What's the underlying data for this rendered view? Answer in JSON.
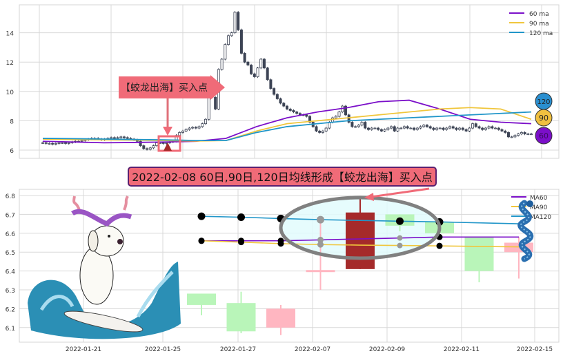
{
  "chart_data": [
    {
      "type": "candlestick",
      "yticks": [
        6,
        8,
        10,
        12,
        14
      ],
      "ylim": [
        5.5,
        15.6
      ],
      "grid": true,
      "legend_position": "top-right",
      "closes": [
        6.5,
        6.45,
        6.45,
        6.4,
        6.45,
        6.5,
        6.5,
        6.45,
        6.5,
        6.55,
        6.6,
        6.6,
        6.65,
        6.7,
        6.75,
        6.8,
        6.8,
        6.75,
        6.7,
        6.75,
        6.8,
        6.85,
        6.8,
        6.85,
        6.9,
        6.85,
        6.8,
        6.75,
        6.7,
        6.6,
        6.3,
        6.1,
        6.05,
        6.15,
        6.3,
        6.5,
        6.5,
        6.45,
        6.5,
        6.55,
        6.6,
        7.0,
        7.2,
        7.3,
        7.4,
        7.5,
        7.55,
        7.5,
        7.6,
        7.8,
        8.1,
        10.0,
        9.6,
        8.8,
        11.5,
        12.2,
        13.2,
        13.8,
        14.0,
        15.4,
        14.2,
        12.6,
        12.0,
        11.8,
        11.2,
        11.0,
        11.6,
        12.2,
        11.6,
        10.8,
        10.2,
        9.8,
        9.5,
        9.2,
        9.0,
        8.8,
        8.7,
        8.6,
        8.5,
        8.4,
        8.4,
        8.3,
        7.9,
        7.6,
        7.3,
        7.2,
        7.3,
        7.5,
        7.9,
        8.2,
        8.3,
        8.6,
        9.0,
        8.4,
        7.9,
        7.6,
        7.6,
        7.7,
        7.9,
        7.5,
        7.4,
        7.5,
        7.5,
        7.4,
        7.3,
        7.4,
        7.5,
        7.6,
        7.3,
        7.5,
        7.5,
        7.6,
        7.5,
        7.5,
        7.4,
        7.5,
        7.6,
        7.7,
        7.6,
        7.5,
        7.4,
        7.5,
        7.5,
        7.4,
        7.5,
        7.6,
        7.5,
        7.4,
        7.5,
        7.4,
        7.3,
        7.5,
        7.8,
        7.6,
        7.5,
        7.4,
        7.5,
        7.6,
        7.5,
        7.5,
        7.4,
        7.3,
        7.2,
        6.9,
        6.9,
        7.0,
        7.1,
        7.2,
        7.1,
        7.1,
        7.1
      ],
      "series": [
        {
          "name": "60 ma",
          "color": "#7b0fc9",
          "values": [
            6.6,
            6.55,
            6.5,
            6.52,
            6.55,
            6.6,
            6.8,
            7.6,
            8.2,
            8.6,
            8.9,
            9.3,
            9.4,
            8.8,
            8.1,
            7.9,
            7.8
          ]
        },
        {
          "name": "90 ma",
          "color": "#f0c63c",
          "values": [
            6.75,
            6.72,
            6.7,
            6.68,
            6.65,
            6.62,
            6.65,
            7.3,
            7.8,
            8.0,
            8.2,
            8.4,
            8.6,
            8.8,
            8.9,
            8.8,
            8.1
          ]
        },
        {
          "name": "120 ma",
          "color": "#2196c9",
          "values": [
            6.8,
            6.78,
            6.75,
            6.72,
            6.7,
            6.65,
            6.65,
            7.2,
            7.6,
            7.8,
            8.0,
            8.1,
            8.2,
            8.3,
            8.4,
            8.5,
            8.6
          ]
        }
      ],
      "annotation": "【蛟龙出海】买入点",
      "end_badges": [
        {
          "label": "120",
          "color": "#2a8fd0"
        },
        {
          "label": "90",
          "color": "#f0c040"
        },
        {
          "label": "60",
          "color": "#7b0fc9"
        }
      ]
    },
    {
      "type": "candlestick",
      "title": "2022-02-08 60日,90日,120日均线形成【蛟龙出海】买入点",
      "yticks": [
        6.1,
        6.2,
        6.3,
        6.4,
        6.5,
        6.6,
        6.7,
        6.8
      ],
      "ylim": [
        6.03,
        6.85
      ],
      "grid": true,
      "legend_position": "top-right",
      "xtick_labels": [
        "2022-01-21",
        "2022-01-25",
        "2022-01-27",
        "2022-02-07",
        "2022-02-09",
        "2022-02-11",
        "2022-02-15"
      ],
      "candles": [
        {
          "open": 6.22,
          "close": 6.28,
          "high": 6.28,
          "low": 6.165,
          "color": "#b9f5b9"
        },
        {
          "open": 6.23,
          "close": 6.08,
          "high": 6.29,
          "low": 6.07,
          "color": "#b9f5b9"
        },
        {
          "open": 6.1,
          "close": 6.2,
          "high": 6.22,
          "low": 6.06,
          "color": "#ffb6c1"
        },
        {
          "open": 6.4,
          "close": 6.405,
          "high": 6.67,
          "low": 6.3,
          "color": "#ffb6c1"
        },
        {
          "open": 6.41,
          "close": 6.71,
          "high": 6.79,
          "low": 6.41,
          "color": "#a52a2a"
        },
        {
          "open": 6.7,
          "close": 6.64,
          "high": 6.7,
          "low": 6.61,
          "color": "#b9f5b9"
        },
        {
          "open": 6.66,
          "close": 6.6,
          "high": 6.66,
          "low": 6.58,
          "color": "#b9f5b9"
        },
        {
          "open": 6.58,
          "close": 6.4,
          "high": 6.58,
          "low": 6.34,
          "color": "#b9f5b9"
        },
        {
          "open": 6.5,
          "close": 6.55,
          "high": 6.58,
          "low": 6.36,
          "color": "#ffb6c1"
        }
      ],
      "series": [
        {
          "name": "MA60",
          "color": "#7b0fc9",
          "values": [
            6.56,
            6.56,
            6.56,
            6.565,
            6.57,
            6.575,
            6.58,
            6.58,
            6.58
          ]
        },
        {
          "name": "MA90",
          "color": "#f0c63c",
          "values": [
            6.56,
            6.553,
            6.545,
            6.54,
            6.537,
            6.535,
            6.533,
            6.53,
            6.528
          ]
        },
        {
          "name": "MA120",
          "color": "#2196c9",
          "values": [
            6.69,
            6.685,
            6.678,
            6.672,
            6.668,
            6.664,
            6.66,
            6.655,
            6.65
          ]
        }
      ]
    }
  ]
}
